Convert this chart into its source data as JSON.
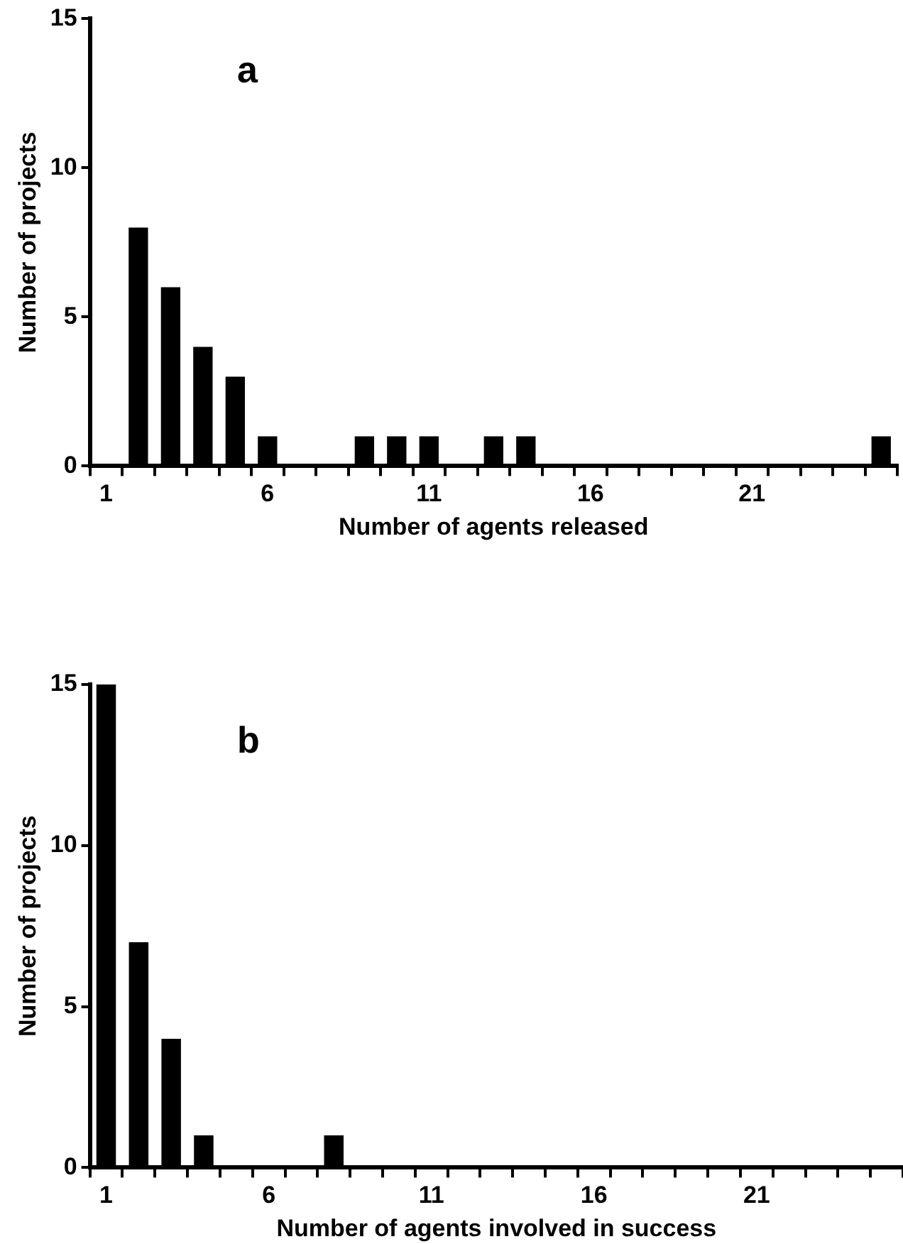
{
  "chart_data": [
    {
      "type": "bar",
      "title": "a",
      "xlabel": "Number of agents released",
      "ylabel": "Number of projects",
      "categories": [
        "1",
        null,
        null,
        null,
        null,
        "6",
        null,
        null,
        null,
        null,
        "11",
        null,
        null,
        null,
        null,
        "16",
        null,
        null,
        null,
        null,
        "21",
        null,
        null,
        null,
        null
      ],
      "series": [
        {
          "color": "#000000",
          "values": [
            0,
            8,
            6,
            4,
            3,
            1,
            0,
            0,
            1,
            1,
            1,
            0,
            1,
            1,
            0,
            0,
            0,
            0,
            0,
            0,
            0,
            0,
            0,
            0,
            1
          ]
        }
      ],
      "ylim": [
        0,
        15
      ],
      "yticks": [
        0,
        5,
        10,
        15
      ],
      "grid": false,
      "legend": false
    },
    {
      "type": "bar",
      "title": "b",
      "xlabel": "Number of agents involved in success",
      "ylabel": "Number of projects",
      "categories": [
        "1",
        null,
        null,
        null,
        null,
        "6",
        null,
        null,
        null,
        null,
        "11",
        null,
        null,
        null,
        null,
        "16",
        null,
        null,
        null,
        null,
        "21",
        null,
        null,
        null,
        null
      ],
      "series": [
        {
          "color": "#000000",
          "values": [
            15,
            7,
            4,
            1,
            0,
            0,
            0,
            1,
            0,
            0,
            0,
            0,
            0,
            0,
            0,
            0,
            0,
            0,
            0,
            0,
            0,
            0,
            0,
            0,
            0
          ]
        }
      ],
      "ylim": [
        0,
        15
      ],
      "yticks": [
        0,
        5,
        10,
        15
      ],
      "grid": false,
      "legend": false
    }
  ]
}
